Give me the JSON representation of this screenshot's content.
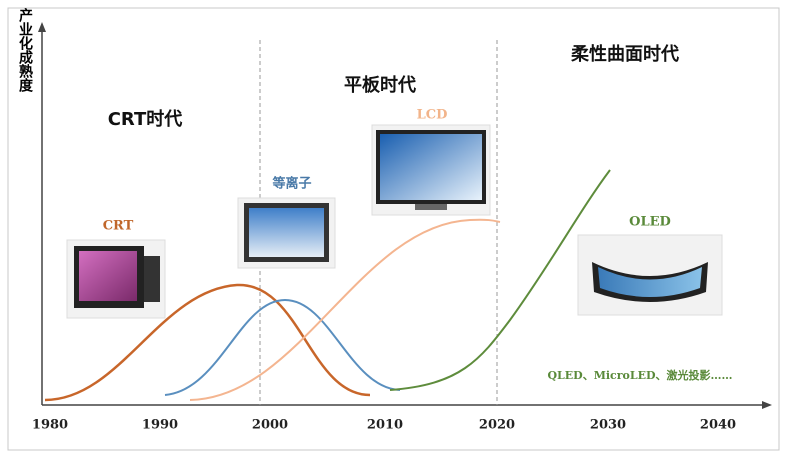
{
  "axis": {
    "y_label": "产业化成熟度",
    "x_ticks": [
      "1980",
      "1990",
      "2000",
      "2010",
      "2020",
      "2030",
      "2040"
    ]
  },
  "eras": [
    "CRT时代",
    "平板时代",
    "柔性曲面时代"
  ],
  "products": [
    "CRT",
    "等离子",
    "LCD",
    "OLED"
  ],
  "note": "QLED、MicroLED、激光投影……"
}
